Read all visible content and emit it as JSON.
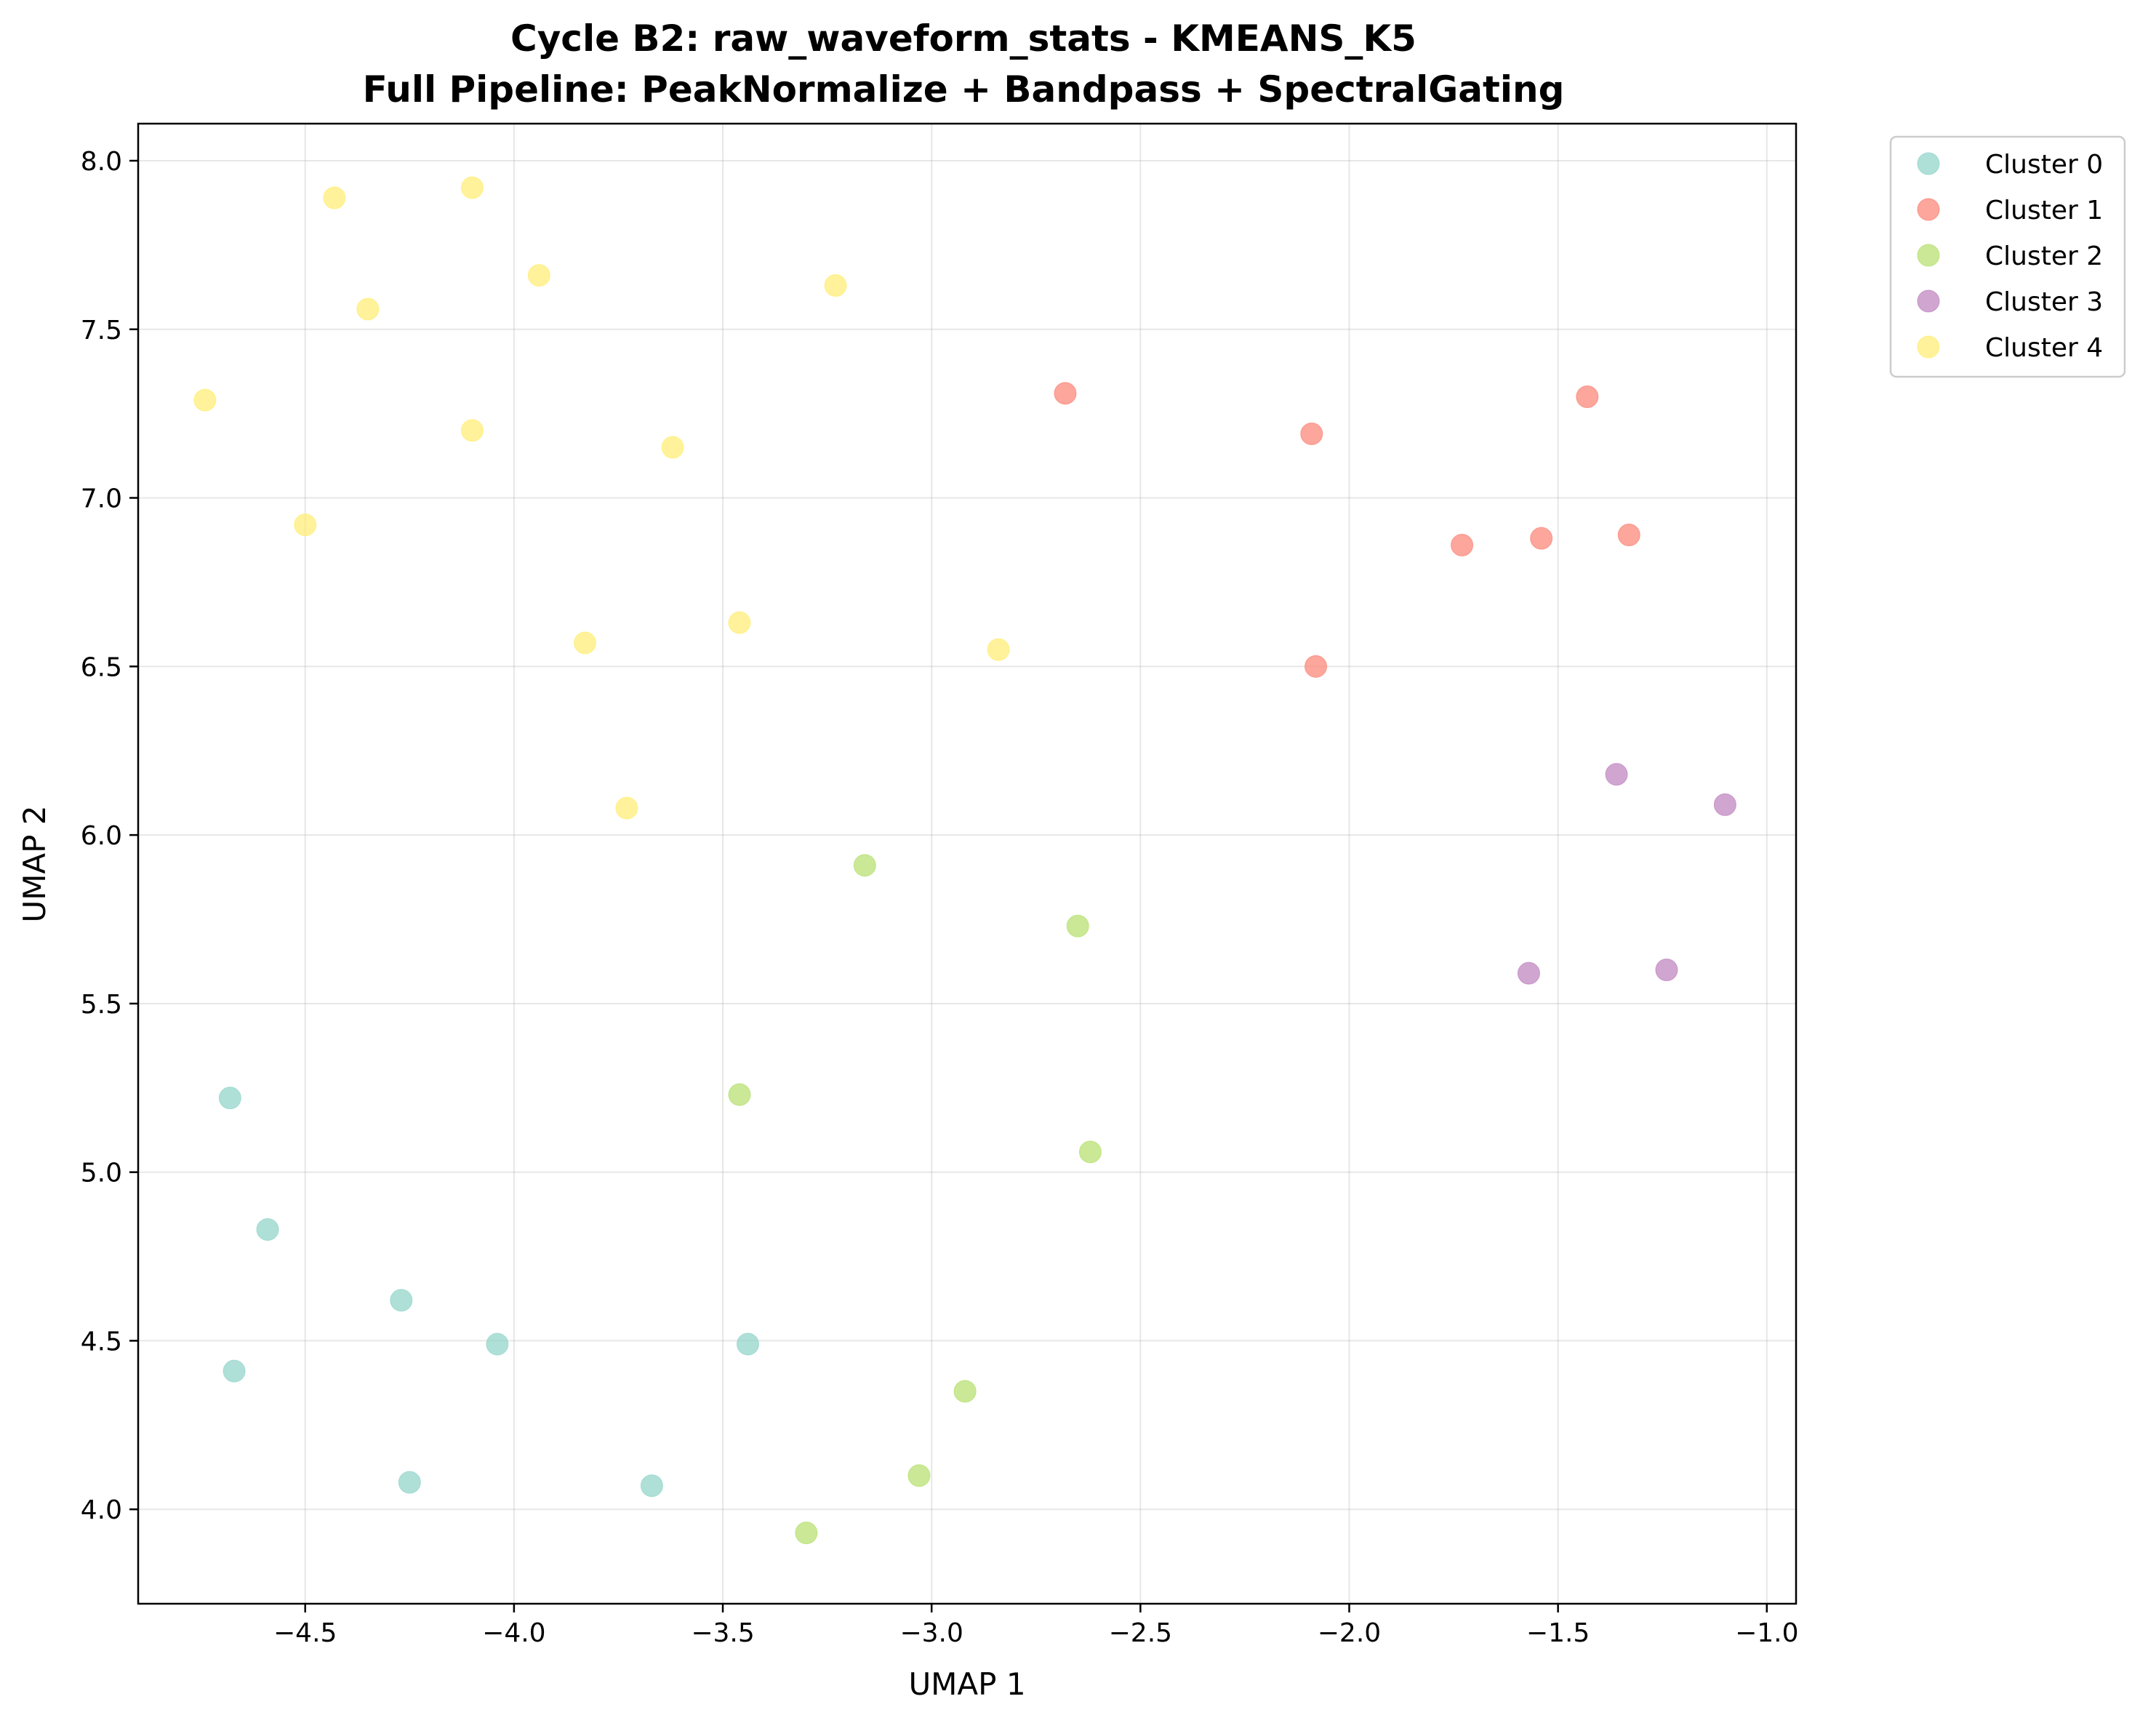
{
  "chart_data": {
    "type": "scatter",
    "title": "Cycle B2: raw_waveform_stats - KMEANS_K5",
    "subtitle": "Full Pipeline: PeakNormalize + Bandpass + SpectralGating",
    "xlabel": "UMAP 1",
    "ylabel": "UMAP 2",
    "xlim": [
      -4.9,
      -0.93
    ],
    "ylim": [
      3.72,
      8.11
    ],
    "x_ticks": [
      -4.5,
      -4.0,
      -3.5,
      -3.0,
      -2.5,
      -2.0,
      -1.5,
      -1.0
    ],
    "x_tick_labels": [
      "−4.5",
      "−4.0",
      "−3.5",
      "−3.0",
      "−2.5",
      "−2.0",
      "−1.5",
      "−1.0"
    ],
    "y_ticks": [
      4.0,
      4.5,
      5.0,
      5.5,
      6.0,
      6.5,
      7.0,
      7.5,
      8.0
    ],
    "y_tick_labels": [
      "4.0",
      "4.5",
      "5.0",
      "5.5",
      "6.0",
      "6.5",
      "7.0",
      "7.5",
      "8.0"
    ],
    "grid": true,
    "legend_position": "outside-top-right",
    "series": [
      {
        "name": "Cluster 0",
        "color": "#8dd3c7",
        "points": [
          [
            -4.68,
            5.22
          ],
          [
            -4.59,
            4.83
          ],
          [
            -4.27,
            4.62
          ],
          [
            -4.04,
            4.49
          ],
          [
            -3.44,
            4.49
          ],
          [
            -4.67,
            4.41
          ],
          [
            -4.25,
            4.08
          ],
          [
            -3.67,
            4.07
          ]
        ]
      },
      {
        "name": "Cluster 1",
        "color": "#fb8072",
        "points": [
          [
            -2.68,
            7.31
          ],
          [
            -2.09,
            7.19
          ],
          [
            -1.43,
            7.3
          ],
          [
            -1.73,
            6.86
          ],
          [
            -1.54,
            6.88
          ],
          [
            -1.33,
            6.89
          ],
          [
            -2.08,
            6.5
          ]
        ]
      },
      {
        "name": "Cluster 2",
        "color": "#b3de69",
        "points": [
          [
            -3.16,
            5.91
          ],
          [
            -2.65,
            5.73
          ],
          [
            -3.46,
            5.23
          ],
          [
            -2.62,
            5.06
          ],
          [
            -2.92,
            4.35
          ],
          [
            -3.03,
            4.1
          ],
          [
            -3.3,
            3.93
          ]
        ]
      },
      {
        "name": "Cluster 3",
        "color": "#bc80bd",
        "points": [
          [
            -1.36,
            6.18
          ],
          [
            -1.1,
            6.09
          ],
          [
            -1.57,
            5.59
          ],
          [
            -1.24,
            5.6
          ]
        ]
      },
      {
        "name": "Cluster 4",
        "color": "#ffed6f",
        "points": [
          [
            -4.43,
            7.89
          ],
          [
            -4.1,
            7.92
          ],
          [
            -3.94,
            7.66
          ],
          [
            -4.35,
            7.56
          ],
          [
            -3.23,
            7.63
          ],
          [
            -4.74,
            7.29
          ],
          [
            -4.1,
            7.2
          ],
          [
            -3.62,
            7.15
          ],
          [
            -4.5,
            6.92
          ],
          [
            -3.83,
            6.57
          ],
          [
            -3.46,
            6.63
          ],
          [
            -2.84,
            6.55
          ],
          [
            -3.73,
            6.08
          ]
        ]
      }
    ]
  }
}
